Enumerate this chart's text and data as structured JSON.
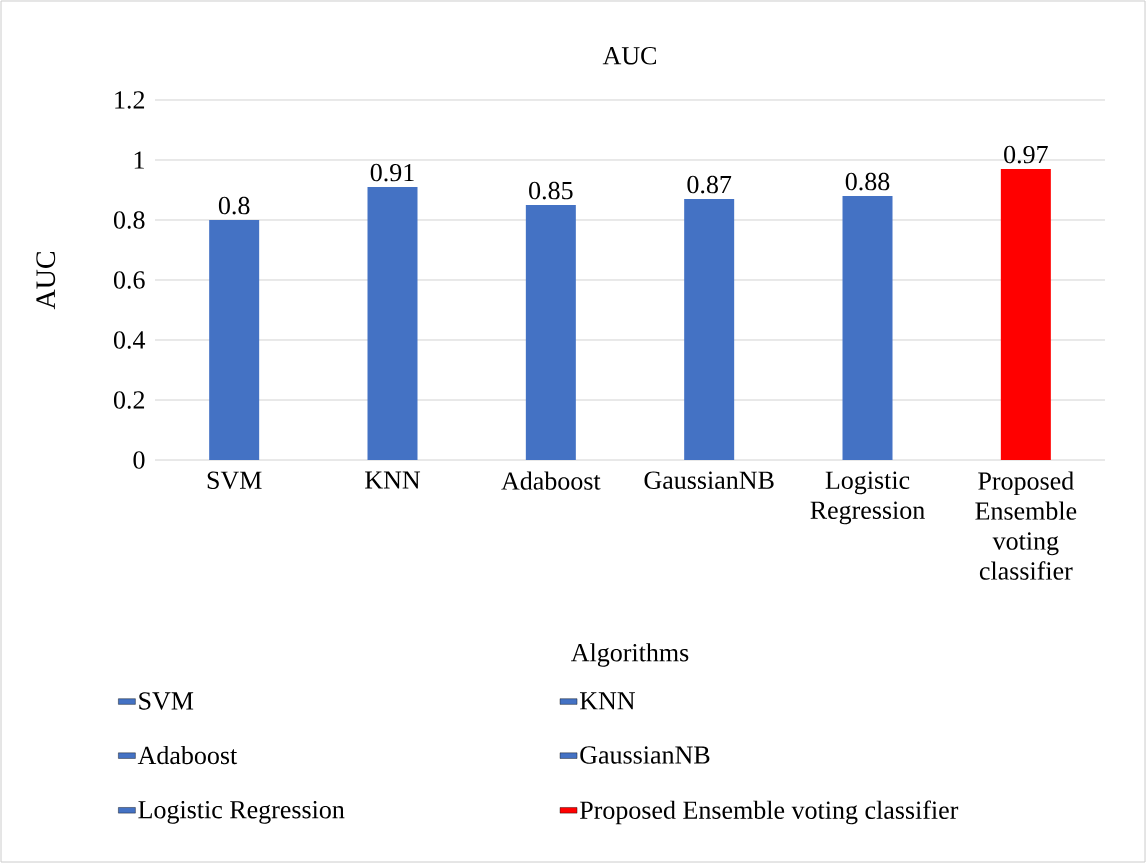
{
  "chart_data": {
    "type": "bar",
    "title": "AUC",
    "xlabel": "Algorithms",
    "ylabel": "AUC",
    "categories": [
      "SVM",
      "KNN",
      "Adaboost",
      "GaussianNB",
      "Logistic Regression",
      "Proposed Ensemble voting classifier"
    ],
    "series": [
      {
        "name": "SVM",
        "color": "#4472c4",
        "values": [
          0.8,
          null,
          null,
          null,
          null,
          null
        ]
      },
      {
        "name": "KNN",
        "color": "#4472c4",
        "values": [
          null,
          0.91,
          null,
          null,
          null,
          null
        ]
      },
      {
        "name": "Adaboost",
        "color": "#4472c4",
        "values": [
          null,
          null,
          0.85,
          null,
          null,
          null
        ]
      },
      {
        "name": "GaussianNB",
        "color": "#4472c4",
        "values": [
          null,
          null,
          null,
          0.87,
          null,
          null
        ]
      },
      {
        "name": "Logistic Regression",
        "color": "#4472c4",
        "values": [
          null,
          null,
          null,
          null,
          0.88,
          null
        ]
      },
      {
        "name": "Proposed Ensemble voting classifier",
        "color": "#ff0000",
        "values": [
          null,
          null,
          null,
          null,
          null,
          0.97
        ]
      }
    ],
    "ylim": [
      0,
      1.2
    ],
    "yticks": [
      0,
      0.2,
      0.4,
      0.6,
      0.8,
      1,
      1.2
    ],
    "grid": "y",
    "data_labels": true,
    "legend": "bottom"
  }
}
